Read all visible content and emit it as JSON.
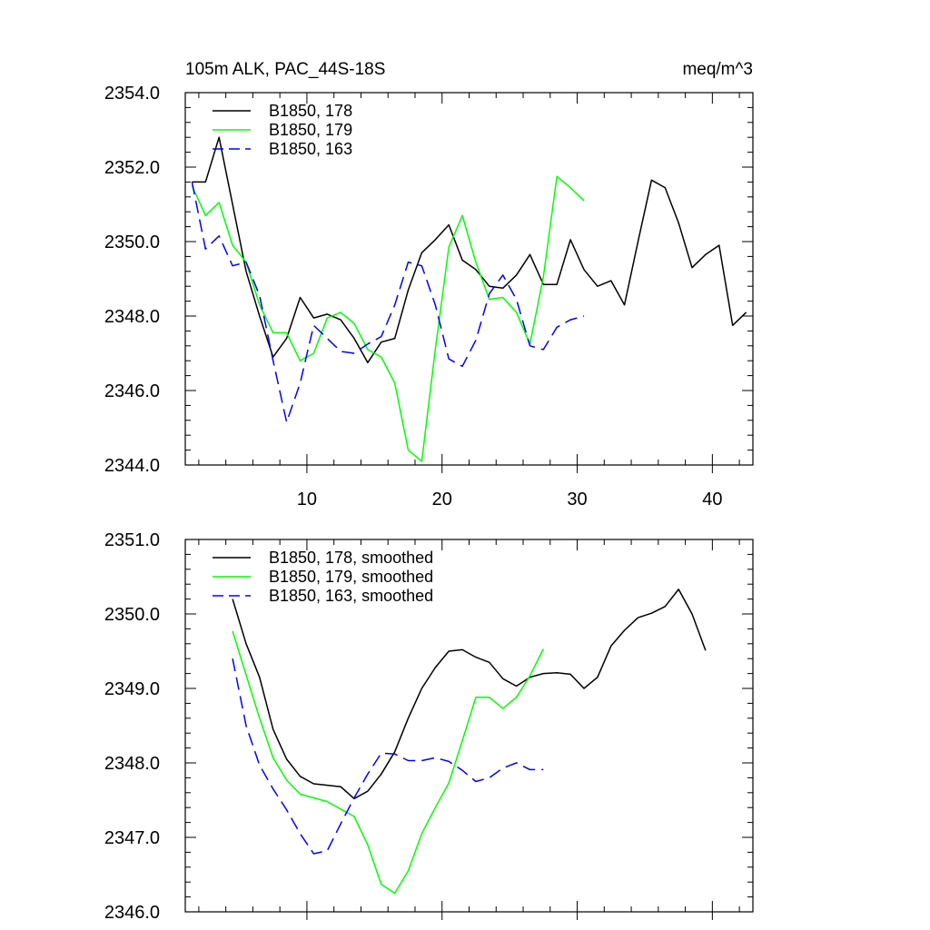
{
  "chart_data": [
    {
      "type": "line",
      "title": "105m ALK, PAC_44S-18S",
      "units": "meq/m^3",
      "xlabel": "",
      "ylabel": "",
      "xlim": [
        1,
        43
      ],
      "ylim": [
        2344.0,
        2354.0
      ],
      "xticks": [
        10,
        20,
        30,
        40
      ],
      "xtick_labels": [
        "10",
        "20",
        "30",
        "40"
      ],
      "yticks": [
        2344,
        2346,
        2348,
        2350,
        2352,
        2354
      ],
      "ytick_labels": [
        "2344.0",
        "2346.0",
        "2348.0",
        "2350.0",
        "2352.0",
        "2354.0"
      ],
      "legend_position": "top-left",
      "series": [
        {
          "name": "B1850, 178",
          "color": "#000000",
          "dash": "solid",
          "x": [
            1.5,
            2.5,
            3.5,
            4.5,
            5.5,
            6.5,
            7.5,
            8.5,
            9.5,
            10.5,
            11.5,
            12.5,
            13.5,
            14.5,
            15.5,
            16.5,
            17.5,
            18.5,
            19.5,
            20.5,
            21.5,
            22.5,
            23.5,
            24.5,
            25.5,
            26.5,
            27.5,
            28.5,
            29.5,
            30.5,
            31.5,
            32.5,
            33.5,
            34.5,
            35.5,
            36.5,
            37.5,
            38.5,
            39.5,
            40.5,
            41.5,
            42.5
          ],
          "values": [
            2351.6,
            2351.6,
            2352.8,
            2351.0,
            2349.2,
            2348.0,
            2346.9,
            2347.4,
            2348.5,
            2347.95,
            2348.05,
            2347.9,
            2347.4,
            2346.75,
            2347.3,
            2347.4,
            2348.7,
            2349.7,
            2350.05,
            2350.45,
            2349.5,
            2349.25,
            2348.8,
            2348.75,
            2349.1,
            2349.65,
            2348.85,
            2348.85,
            2350.05,
            2349.25,
            2348.8,
            2348.95,
            2348.3,
            2350.0,
            2351.65,
            2351.45,
            2350.5,
            2349.3,
            2349.65,
            2349.9,
            2347.75,
            2348.1
          ]
        },
        {
          "name": "B1850, 179",
          "color": "#00ff00",
          "dash": "solid",
          "x": [
            1.5,
            2.5,
            3.5,
            4.5,
            5.5,
            6.5,
            7.5,
            8.5,
            9.5,
            10.5,
            11.5,
            12.5,
            13.5,
            14.5,
            15.5,
            16.5,
            17.5,
            18.5,
            19.5,
            20.5,
            21.5,
            22.5,
            23.5,
            24.5,
            25.5,
            26.5,
            27.5,
            28.5,
            29.5,
            30.5
          ],
          "values": [
            2351.5,
            2350.7,
            2351.05,
            2349.9,
            2349.45,
            2348.3,
            2347.55,
            2347.55,
            2346.8,
            2347.0,
            2347.95,
            2348.1,
            2347.8,
            2347.1,
            2346.9,
            2346.2,
            2344.4,
            2344.1,
            2347.1,
            2349.85,
            2350.7,
            2349.45,
            2348.45,
            2348.5,
            2348.1,
            2347.25,
            2349.05,
            2351.75,
            2351.45,
            2351.1
          ]
        },
        {
          "name": "B1850, 163",
          "color": "#0000ff",
          "dash": "dashed",
          "x": [
            1.5,
            2.5,
            3.5,
            4.5,
            5.5,
            6.5,
            7.5,
            8.5,
            9.5,
            10.5,
            11.5,
            12.5,
            13.5,
            14.5,
            15.5,
            16.5,
            17.5,
            18.5,
            19.5,
            20.5,
            21.5,
            22.5,
            23.5,
            24.5,
            25.5,
            26.5,
            27.5,
            28.5,
            29.5,
            30.5
          ],
          "values": [
            2351.6,
            2349.8,
            2350.15,
            2349.35,
            2349.45,
            2348.55,
            2346.8,
            2345.15,
            2346.2,
            2347.75,
            2347.4,
            2347.05,
            2347.0,
            2347.25,
            2347.45,
            2348.3,
            2349.45,
            2349.35,
            2348.3,
            2346.85,
            2346.65,
            2347.35,
            2348.6,
            2349.1,
            2348.45,
            2347.2,
            2347.1,
            2347.7,
            2347.9,
            2348.0
          ]
        }
      ]
    },
    {
      "type": "line",
      "title": "",
      "xlabel": "",
      "ylabel": "",
      "xlim": [
        1,
        43
      ],
      "ylim": [
        2346.0,
        2351.0
      ],
      "xticks": [
        10,
        20,
        30,
        40
      ],
      "xtick_labels": [],
      "yticks": [
        2346,
        2347,
        2348,
        2349,
        2350,
        2351
      ],
      "ytick_labels": [
        "2346.0",
        "2347.0",
        "2348.0",
        "2349.0",
        "2350.0",
        "2351.0"
      ],
      "legend_position": "top-left",
      "series": [
        {
          "name": "B1850, 178, smoothed",
          "color": "#000000",
          "dash": "solid",
          "x": [
            4.5,
            5.5,
            6.5,
            7.5,
            8.5,
            9.5,
            10.5,
            11.5,
            12.5,
            13.5,
            14.5,
            15.5,
            16.5,
            17.5,
            18.5,
            19.5,
            20.5,
            21.5,
            22.5,
            23.5,
            24.5,
            25.5,
            26.5,
            27.5,
            28.5,
            29.5,
            30.5,
            31.5,
            32.5,
            33.5,
            34.5,
            35.5,
            36.5,
            37.5,
            38.5,
            39.5
          ],
          "values": [
            2350.2,
            2349.6,
            2349.15,
            2348.45,
            2348.05,
            2347.82,
            2347.72,
            2347.7,
            2347.68,
            2347.52,
            2347.62,
            2347.85,
            2348.15,
            2348.6,
            2349.0,
            2349.28,
            2349.5,
            2349.52,
            2349.42,
            2349.35,
            2349.13,
            2349.03,
            2349.15,
            2349.2,
            2349.21,
            2349.19,
            2349.0,
            2349.15,
            2349.57,
            2349.78,
            2349.95,
            2350.01,
            2350.1,
            2350.33,
            2350.0,
            2349.51
          ]
        },
        {
          "name": "B1850, 179, smoothed",
          "color": "#00ff00",
          "dash": "solid",
          "x": [
            4.5,
            5.5,
            6.5,
            7.5,
            8.5,
            9.5,
            10.5,
            11.5,
            12.5,
            13.5,
            14.5,
            15.5,
            16.5,
            17.5,
            18.5,
            19.5,
            20.5,
            21.5,
            22.5,
            23.5,
            24.5,
            25.5,
            26.5,
            27.5
          ],
          "values": [
            2349.77,
            2349.18,
            2348.6,
            2348.07,
            2347.77,
            2347.58,
            2347.53,
            2347.48,
            2347.38,
            2347.28,
            2346.9,
            2346.37,
            2346.25,
            2346.55,
            2347.05,
            2347.4,
            2347.73,
            2348.3,
            2348.88,
            2348.88,
            2348.73,
            2348.88,
            2349.17,
            2349.53
          ]
        },
        {
          "name": "B1850, 163, smoothed",
          "color": "#0000ff",
          "dash": "dashed",
          "x": [
            4.5,
            5.5,
            6.5,
            7.5,
            8.5,
            9.5,
            10.5,
            11.5,
            12.5,
            13.5,
            14.5,
            15.5,
            16.5,
            17.5,
            18.5,
            19.5,
            20.5,
            21.5,
            22.5,
            23.5,
            24.5,
            25.5,
            26.5,
            27.5
          ],
          "values": [
            2349.4,
            2348.5,
            2347.97,
            2347.65,
            2347.37,
            2347.05,
            2346.78,
            2346.82,
            2347.18,
            2347.53,
            2347.85,
            2348.13,
            2348.12,
            2348.03,
            2348.03,
            2348.07,
            2348.02,
            2347.9,
            2347.75,
            2347.8,
            2347.93,
            2348.0,
            2347.91,
            2347.91
          ]
        }
      ]
    }
  ]
}
